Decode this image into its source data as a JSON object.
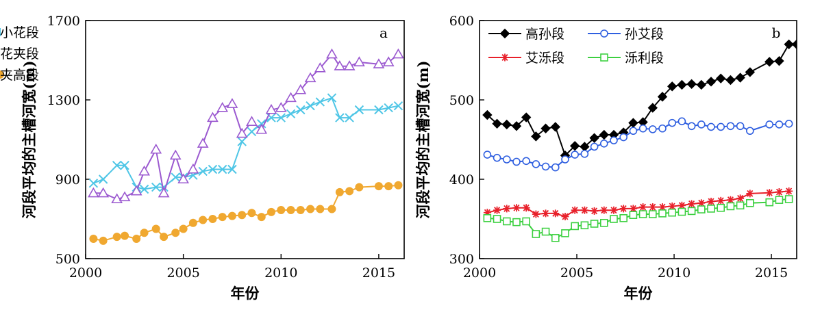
{
  "chart_data": [
    {
      "type": "line",
      "panel_label": "a",
      "xlabel": "年份",
      "ylabel": "河段平均的主槽河宽(m)",
      "xlim": [
        2000,
        2016.3
      ],
      "ylim": [
        500,
        1700
      ],
      "xticks": [
        2000,
        2005,
        2010,
        2015
      ],
      "yticks": [
        500,
        900,
        1300,
        1700
      ],
      "legend_position": "top-left",
      "series": [
        {
          "name": "小花段",
          "color": "#4fc6e6",
          "marker": "x",
          "x": [
            2000.4,
            2000.9,
            2001.6,
            2002.0,
            2002.6,
            2003.0,
            2003.6,
            2004.0,
            2004.6,
            2005.0,
            2005.5,
            2006.0,
            2006.5,
            2007.0,
            2007.5,
            2008.0,
            2008.5,
            2009.0,
            2009.5,
            2010.0,
            2010.5,
            2011.0,
            2011.5,
            2012.0,
            2012.6,
            2013.0,
            2013.5,
            2014.0,
            2015.0,
            2015.5,
            2016.0
          ],
          "y": [
            880,
            900,
            970,
            970,
            860,
            850,
            860,
            860,
            910,
            910,
            920,
            940,
            950,
            950,
            950,
            1090,
            1140,
            1180,
            1210,
            1210,
            1230,
            1250,
            1270,
            1290,
            1310,
            1210,
            1210,
            1250,
            1250,
            1260,
            1270
          ]
        },
        {
          "name": "花夹段",
          "color": "#9b59d0",
          "marker": "triangle",
          "x": [
            2000.4,
            2000.9,
            2001.6,
            2002.0,
            2002.6,
            2003.0,
            2003.6,
            2004.0,
            2004.6,
            2005.0,
            2005.5,
            2006.0,
            2006.5,
            2007.0,
            2007.5,
            2008.0,
            2008.5,
            2009.0,
            2009.5,
            2010.0,
            2010.5,
            2011.0,
            2011.5,
            2012.0,
            2012.6,
            2013.0,
            2013.5,
            2014.0,
            2015.0,
            2015.5,
            2016.0
          ],
          "y": [
            830,
            830,
            800,
            810,
            840,
            940,
            1050,
            830,
            1020,
            900,
            950,
            1080,
            1210,
            1260,
            1280,
            1130,
            1190,
            1150,
            1250,
            1260,
            1310,
            1350,
            1410,
            1460,
            1530,
            1470,
            1470,
            1490,
            1480,
            1490,
            1530
          ]
        },
        {
          "name": "夹高段",
          "color": "#f0a830",
          "marker": "circle",
          "x": [
            2000.4,
            2000.9,
            2001.6,
            2002.0,
            2002.6,
            2003.0,
            2003.6,
            2004.0,
            2004.6,
            2005.0,
            2005.5,
            2006.0,
            2006.5,
            2007.0,
            2007.5,
            2008.0,
            2008.5,
            2009.0,
            2009.5,
            2010.0,
            2010.5,
            2011.0,
            2011.5,
            2012.0,
            2012.6,
            2013.0,
            2013.5,
            2014.0,
            2015.0,
            2015.5,
            2016.0
          ],
          "y": [
            600,
            590,
            610,
            615,
            600,
            630,
            650,
            610,
            630,
            650,
            680,
            695,
            700,
            710,
            715,
            720,
            730,
            710,
            735,
            745,
            745,
            745,
            750,
            750,
            750,
            835,
            840,
            860,
            865,
            865,
            870
          ]
        }
      ]
    },
    {
      "type": "line",
      "panel_label": "b",
      "xlabel": "年份",
      "ylabel": "河段平均的主槽河宽(m)",
      "xlim": [
        2000,
        2016.3
      ],
      "ylim": [
        300,
        600
      ],
      "xticks": [
        2000,
        2005,
        2010,
        2015
      ],
      "yticks": [
        300,
        400,
        500,
        600
      ],
      "legend_position": "top-left",
      "series": [
        {
          "name": "高孙段",
          "color": "#000000",
          "marker": "diamond",
          "x": [
            2000.4,
            2000.9,
            2001.4,
            2001.9,
            2002.4,
            2002.9,
            2003.4,
            2003.9,
            2004.4,
            2004.9,
            2005.4,
            2005.9,
            2006.4,
            2006.9,
            2007.4,
            2007.9,
            2008.4,
            2008.9,
            2009.4,
            2009.9,
            2010.4,
            2010.9,
            2011.4,
            2011.9,
            2012.4,
            2012.9,
            2013.4,
            2013.9,
            2014.9,
            2015.4,
            2015.9,
            2016.3
          ],
          "y": [
            481,
            470,
            469,
            467,
            478,
            454,
            464,
            466,
            430,
            442,
            441,
            452,
            456,
            456,
            459,
            471,
            472,
            490,
            504,
            517,
            519,
            520,
            519,
            523,
            527,
            525,
            528,
            535,
            548,
            549,
            570,
            570
          ]
        },
        {
          "name": "孙艾段",
          "color": "#2f5fe0",
          "marker": "open-circle",
          "x": [
            2000.4,
            2000.9,
            2001.4,
            2001.9,
            2002.4,
            2002.9,
            2003.4,
            2003.9,
            2004.4,
            2004.9,
            2005.4,
            2005.9,
            2006.4,
            2006.9,
            2007.4,
            2007.9,
            2008.4,
            2008.9,
            2009.4,
            2009.9,
            2010.4,
            2010.9,
            2011.4,
            2011.9,
            2012.4,
            2012.9,
            2013.4,
            2013.9,
            2014.9,
            2015.4,
            2015.9
          ],
          "y": [
            431,
            427,
            425,
            422,
            423,
            419,
            416,
            415,
            425,
            431,
            432,
            441,
            445,
            449,
            453,
            461,
            464,
            463,
            464,
            471,
            473,
            467,
            469,
            466,
            466,
            467,
            467,
            461,
            469,
            469,
            470
          ]
        },
        {
          "name": "艾泺段",
          "color": "#e8202a",
          "marker": "asterisk",
          "x": [
            2000.4,
            2000.9,
            2001.4,
            2001.9,
            2002.4,
            2002.9,
            2003.4,
            2003.9,
            2004.4,
            2004.9,
            2005.4,
            2005.9,
            2006.4,
            2006.9,
            2007.4,
            2007.9,
            2008.4,
            2008.9,
            2009.4,
            2009.9,
            2010.4,
            2010.9,
            2011.4,
            2011.9,
            2012.4,
            2012.9,
            2013.4,
            2013.9,
            2014.9,
            2015.4,
            2015.9
          ],
          "y": [
            358,
            361,
            363,
            364,
            364,
            356,
            357,
            357,
            353,
            361,
            361,
            360,
            361,
            361,
            363,
            363,
            365,
            365,
            365,
            366,
            367,
            369,
            370,
            372,
            373,
            374,
            376,
            382,
            383,
            384,
            385
          ]
        },
        {
          "name": "泺利段",
          "color": "#3cd040",
          "marker": "open-square",
          "x": [
            2000.4,
            2000.9,
            2001.4,
            2001.9,
            2002.4,
            2002.9,
            2003.4,
            2003.9,
            2004.4,
            2004.9,
            2005.4,
            2005.9,
            2006.4,
            2006.9,
            2007.4,
            2007.9,
            2008.4,
            2008.9,
            2009.4,
            2009.9,
            2010.4,
            2010.9,
            2011.4,
            2011.9,
            2012.4,
            2012.9,
            2013.4,
            2013.9,
            2014.9,
            2015.4,
            2015.9
          ],
          "y": [
            351,
            350,
            347,
            346,
            347,
            331,
            334,
            326,
            332,
            341,
            342,
            344,
            345,
            350,
            351,
            355,
            356,
            356,
            357,
            358,
            359,
            360,
            362,
            363,
            364,
            366,
            367,
            370,
            371,
            374,
            375
          ]
        }
      ]
    }
  ]
}
